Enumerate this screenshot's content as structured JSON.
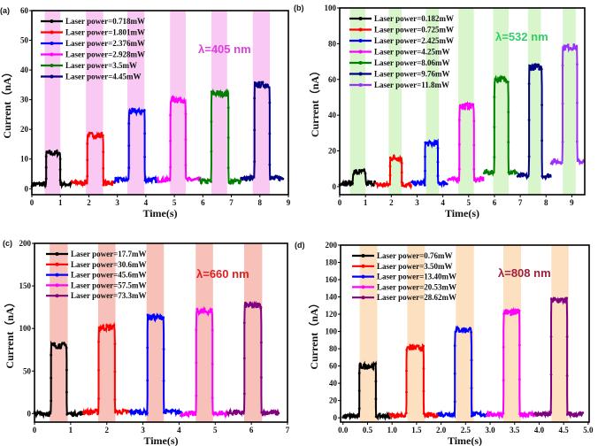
{
  "chart_data": [
    {
      "type": "line",
      "panel": "(a)",
      "annotation": "λ=405 nm",
      "annotation_color": "#e040e0",
      "xlabel": "Time(s)",
      "ylabel": "Current（nA）",
      "xlim": [
        0,
        9
      ],
      "ylim": [
        -2,
        60
      ],
      "xticks": [
        0,
        1,
        2,
        3,
        4,
        5,
        6,
        7,
        8,
        9
      ],
      "xtick_labels": [
        "0",
        "1",
        "2",
        "3",
        "4",
        "5",
        "6",
        "7",
        "8",
        "9"
      ],
      "yticks": [
        0,
        10,
        20,
        30,
        40,
        50,
        60
      ],
      "ytick_labels": [
        "0",
        "10",
        "20",
        "30",
        "40",
        "50",
        "60"
      ],
      "band_color": "#f9c8f3",
      "bands": [
        [
          0.45,
          1.0
        ],
        [
          1.9,
          2.5
        ],
        [
          3.35,
          3.95
        ],
        [
          4.85,
          5.4
        ],
        [
          6.3,
          6.85
        ],
        [
          7.75,
          8.35
        ]
      ],
      "legend_position": "top-left",
      "series": [
        {
          "name": "Laser power=0.718mW",
          "color": "#000000",
          "t": [
            0,
            1.4
          ],
          "on": [
            0.5,
            1.0
          ],
          "dark": 1.5,
          "photo": 12
        },
        {
          "name": "Laser power=1.801mW",
          "color": "#ff0000",
          "t": [
            1.4,
            2.9
          ],
          "on": [
            1.95,
            2.5
          ],
          "dark": 2,
          "photo": 18
        },
        {
          "name": "Laser power=2.376mW",
          "color": "#0000ff",
          "t": [
            2.9,
            4.4
          ],
          "on": [
            3.4,
            3.95
          ],
          "dark": 3,
          "photo": 26
        },
        {
          "name": "Laser power=2.928mW",
          "color": "#ff00ff",
          "t": [
            4.4,
            5.9
          ],
          "on": [
            4.85,
            5.4
          ],
          "dark": 3,
          "photo": 30
        },
        {
          "name": "Laser power=3.5mW",
          "color": "#008000",
          "t": [
            5.9,
            7.35
          ],
          "on": [
            6.3,
            6.9
          ],
          "dark": 2.5,
          "photo": 32
        },
        {
          "name": "Laser power=4.45mW",
          "color": "#000080",
          "t": [
            7.35,
            8.85
          ],
          "on": [
            7.8,
            8.35
          ],
          "dark": 3.5,
          "photo": 35
        }
      ]
    },
    {
      "type": "line",
      "panel": "(b)",
      "annotation": "λ=532 nm",
      "annotation_color": "#33cc66",
      "xlabel": "Time(s)",
      "ylabel": "Current（nA）",
      "xlim": [
        0,
        9.5
      ],
      "ylim": [
        -4.5,
        100
      ],
      "xticks": [
        0,
        1,
        2,
        3,
        4,
        5,
        6,
        7,
        8,
        9
      ],
      "xtick_labels": [
        "0",
        "1",
        "2",
        "3",
        "4",
        "5",
        "6",
        "7",
        "8",
        "9"
      ],
      "yticks": [
        0,
        20,
        40,
        60,
        80,
        100
      ],
      "ytick_labels": [
        "0",
        "20",
        "40",
        "60",
        "80",
        "100"
      ],
      "band_color": "#d8f5cc",
      "bands": [
        [
          0.4,
          1.0
        ],
        [
          1.9,
          2.4
        ],
        [
          3.35,
          3.85
        ],
        [
          4.6,
          5.2
        ],
        [
          5.95,
          6.55
        ],
        [
          7.3,
          7.8
        ],
        [
          8.65,
          9.15
        ]
      ],
      "legend_position": "top-left",
      "series": [
        {
          "name": "Laser power=0.182mW",
          "color": "#000000",
          "t": [
            0,
            1.4
          ],
          "on": [
            0.5,
            1.0
          ],
          "dark": 2,
          "photo": 8
        },
        {
          "name": "Laser power=0.725mW",
          "color": "#ff0000",
          "t": [
            1.4,
            2.8
          ],
          "on": [
            1.95,
            2.4
          ],
          "dark": 1,
          "photo": 16
        },
        {
          "name": "Laser power=2.425mW",
          "color": "#0000ff",
          "t": [
            2.8,
            4.2
          ],
          "on": [
            3.3,
            3.8
          ],
          "dark": 2,
          "photo": 24
        },
        {
          "name": "Laser power=4.25mW",
          "color": "#ff00ff",
          "t": [
            4.2,
            5.6
          ],
          "on": [
            4.65,
            5.2
          ],
          "dark": 4,
          "photo": 45
        },
        {
          "name": "Laser power=8.06mW",
          "color": "#008000",
          "t": [
            5.6,
            6.9
          ],
          "on": [
            6.0,
            6.55
          ],
          "dark": 8,
          "photo": 60
        },
        {
          "name": "Laser power=9.76mW",
          "color": "#000080",
          "t": [
            6.9,
            8.2
          ],
          "on": [
            7.35,
            7.85
          ],
          "dark": 6,
          "photo": 67
        },
        {
          "name": "Laser power=11.8mW",
          "color": "#9b30ff",
          "t": [
            8.2,
            9.5
          ],
          "on": [
            8.65,
            9.2
          ],
          "dark": 14,
          "photo": 78
        }
      ]
    },
    {
      "type": "line",
      "panel": "(c)",
      "annotation": "λ=660 nm",
      "annotation_color": "#e02020",
      "xlabel": "Time(s)",
      "ylabel": "Current（nA）",
      "xlim": [
        0,
        7
      ],
      "ylim": [
        -10,
        200
      ],
      "xticks": [
        0,
        1,
        2,
        3,
        4,
        5,
        6,
        7
      ],
      "xtick_labels": [
        "0",
        "1",
        "2",
        "3",
        "4",
        "5",
        "6",
        "7"
      ],
      "yticks": [
        0,
        50,
        100,
        150,
        200
      ],
      "ytick_labels": [
        "0",
        "50",
        "100",
        "150",
        "200"
      ],
      "band_color": "#f7c0b8",
      "bands": [
        [
          0.42,
          0.92
        ],
        [
          1.76,
          2.24
        ],
        [
          3.1,
          3.58
        ],
        [
          4.46,
          4.94
        ],
        [
          5.8,
          6.3
        ]
      ],
      "legend_position": "top-left",
      "series": [
        {
          "name": "Laser power=17.7mW",
          "color": "#000000",
          "t": [
            0,
            1.35
          ],
          "on": [
            0.45,
            0.9
          ],
          "dark": 0,
          "photo": 80
        },
        {
          "name": "Laser power=30.6mW",
          "color": "#ff0000",
          "t": [
            1.35,
            2.65
          ],
          "on": [
            1.78,
            2.23
          ],
          "dark": 2,
          "photo": 101
        },
        {
          "name": "Laser power=45.6mW",
          "color": "#0000ff",
          "t": [
            2.65,
            4.05
          ],
          "on": [
            3.12,
            3.57
          ],
          "dark": 2,
          "photo": 113
        },
        {
          "name": "Laser power=57.5mW",
          "color": "#ff00ff",
          "t": [
            4.05,
            5.35
          ],
          "on": [
            4.47,
            4.93
          ],
          "dark": 0,
          "photo": 120
        },
        {
          "name": "Laser power=73.3mW",
          "color": "#800080",
          "t": [
            5.35,
            6.75
          ],
          "on": [
            5.81,
            6.28
          ],
          "dark": 1,
          "photo": 127
        }
      ]
    },
    {
      "type": "line",
      "panel": "(d)",
      "annotation": "λ=808 nm",
      "annotation_color": "#a0203a",
      "xlabel": "Time(s)",
      "ylabel": "Current（nA）",
      "xlim": [
        -0.05,
        5.02
      ],
      "ylim": [
        -5,
        200
      ],
      "xticks": [
        0,
        0.5,
        1,
        1.5,
        2,
        2.5,
        3,
        3.5,
        4,
        4.5,
        5
      ],
      "xtick_labels": [
        "0.0",
        "0.5",
        "1.0",
        "1.5",
        "2.0",
        "2.5",
        "3.0",
        "3.5",
        "4.0",
        "4.5",
        "5.0"
      ],
      "yticks": [
        0,
        20,
        40,
        60,
        80,
        100,
        120,
        140,
        160,
        180,
        200
      ],
      "ytick_labels": [
        "0",
        "20",
        "40",
        "60",
        "80",
        "100",
        "120",
        "140",
        "160",
        "180",
        "200"
      ],
      "band_color": "#fde0c0",
      "bands": [
        [
          0.34,
          0.7
        ],
        [
          1.31,
          1.67
        ],
        [
          2.3,
          2.67
        ],
        [
          3.27,
          3.63
        ],
        [
          4.25,
          4.6
        ]
      ],
      "legend_position": "top-left",
      "series": [
        {
          "name": "Laser power=0.76mW",
          "color": "#000000",
          "t": [
            0,
            0.95
          ],
          "on": [
            0.33,
            0.67
          ],
          "dark": 2,
          "photo": 60
        },
        {
          "name": "Laser power=3.50mW",
          "color": "#ff0000",
          "t": [
            0.95,
            1.95
          ],
          "on": [
            1.3,
            1.65
          ],
          "dark": 3,
          "photo": 81
        },
        {
          "name": "Laser power=13.40mW",
          "color": "#0000ff",
          "t": [
            1.95,
            2.93
          ],
          "on": [
            2.28,
            2.62
          ],
          "dark": 4,
          "photo": 102
        },
        {
          "name": "Laser power=20.53mW",
          "color": "#ff00ff",
          "t": [
            2.93,
            3.9
          ],
          "on": [
            3.27,
            3.6
          ],
          "dark": 4,
          "photo": 122
        },
        {
          "name": "Laser power=28.62mW",
          "color": "#800080",
          "t": [
            3.9,
            4.9
          ],
          "on": [
            4.25,
            4.57
          ],
          "dark": 4,
          "photo": 136
        }
      ]
    }
  ]
}
